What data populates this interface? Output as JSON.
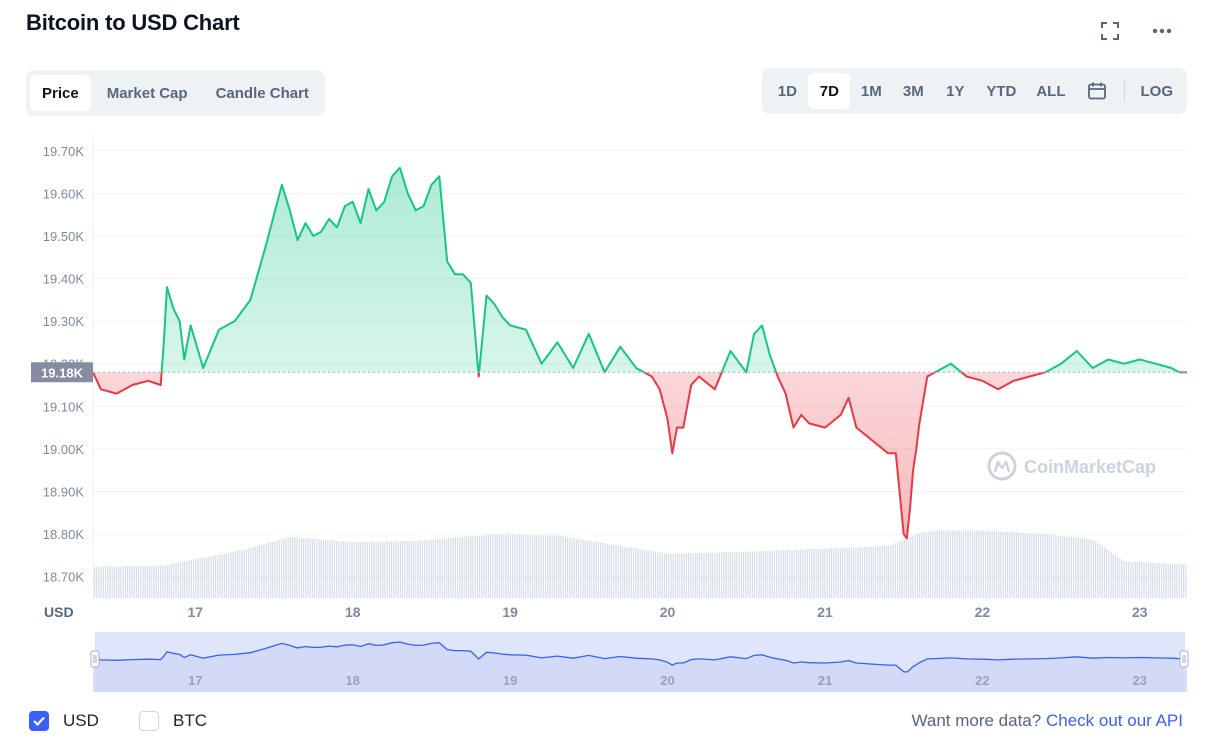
{
  "header": {
    "title": "Bitcoin to USD Chart"
  },
  "tabs": [
    {
      "label": "Price",
      "active": true
    },
    {
      "label": "Market Cap",
      "active": false
    },
    {
      "label": "Candle Chart",
      "active": false
    }
  ],
  "ranges": [
    {
      "label": "1D",
      "active": false
    },
    {
      "label": "7D",
      "active": true
    },
    {
      "label": "1M",
      "active": false
    },
    {
      "label": "3M",
      "active": false
    },
    {
      "label": "1Y",
      "active": false
    },
    {
      "label": "YTD",
      "active": false
    },
    {
      "label": "ALL",
      "active": false
    }
  ],
  "log_label": "LOG",
  "currency_label": "USD",
  "watermark": "CoinMarketCap",
  "footer": {
    "usd_label": "USD",
    "usd_checked": true,
    "btc_label": "BTC",
    "btc_checked": false,
    "api_prompt": "Want more data?",
    "api_link": "Check out our API"
  },
  "colors": {
    "up": "#16c784",
    "down": "#ea3943",
    "accent": "#3861fb",
    "volume": "#cfd6e4",
    "navigator_fill": "#dfe5fb"
  },
  "chart_data": {
    "type": "line",
    "title": "Bitcoin to USD Chart",
    "ylabel": "",
    "xlabel": "",
    "ylim": [
      18650,
      19730
    ],
    "y_ticks": [
      "19.70K",
      "19.60K",
      "19.50K",
      "19.40K",
      "19.30K",
      "19.20K",
      "19.10K",
      "19.00K",
      "18.90K",
      "18.80K",
      "18.70K"
    ],
    "y_tick_values": [
      19700,
      19600,
      19500,
      19400,
      19300,
      19200,
      19100,
      19000,
      18900,
      18800,
      18700
    ],
    "x_range": [
      16.35,
      23.3
    ],
    "x_ticks": [
      "17",
      "18",
      "19",
      "20",
      "21",
      "22",
      "23"
    ],
    "x_tick_values": [
      17,
      18,
      19,
      20,
      21,
      22,
      23
    ],
    "baseline_value": 19180,
    "baseline_label": "19.18K",
    "grid": true,
    "series": [
      {
        "x": [
          16.35,
          16.4,
          16.5,
          16.6,
          16.7,
          16.78,
          16.8,
          16.82,
          16.86,
          16.9,
          16.93,
          16.97,
          17.05,
          17.15,
          17.25,
          17.35,
          17.45,
          17.5,
          17.55,
          17.6,
          17.65,
          17.7,
          17.75,
          17.8,
          17.85,
          17.9,
          17.95,
          18.0,
          18.05,
          18.1,
          18.15,
          18.2,
          18.25,
          18.3,
          18.35,
          18.4,
          18.45,
          18.5,
          18.55,
          18.6,
          18.65,
          18.7,
          18.75,
          18.8,
          18.85,
          18.9,
          18.95,
          19.0,
          19.1,
          19.2,
          19.3,
          19.4,
          19.5,
          19.6,
          19.7,
          19.8,
          19.9,
          19.95,
          20.0,
          20.03,
          20.06,
          20.1,
          20.15,
          20.2,
          20.3,
          20.4,
          20.5,
          20.55,
          20.6,
          20.65,
          20.7,
          20.75,
          20.8,
          20.85,
          20.9,
          21.0,
          21.1,
          21.15,
          21.2,
          21.3,
          21.4,
          21.45,
          21.5,
          21.52,
          21.54,
          21.56,
          21.58,
          21.6,
          21.65,
          21.7,
          21.8,
          21.9,
          22.0,
          22.1,
          22.2,
          22.3,
          22.4,
          22.5,
          22.6,
          22.7,
          22.8,
          22.9,
          23.0,
          23.1,
          23.2,
          23.25,
          23.3
        ],
        "y": [
          19180,
          19140,
          19130,
          19150,
          19160,
          19150,
          19250,
          19380,
          19330,
          19300,
          19210,
          19290,
          19190,
          19280,
          19300,
          19350,
          19480,
          19550,
          19620,
          19560,
          19490,
          19530,
          19500,
          19510,
          19540,
          19520,
          19570,
          19580,
          19530,
          19610,
          19560,
          19580,
          19640,
          19660,
          19600,
          19560,
          19570,
          19620,
          19640,
          19440,
          19410,
          19410,
          19390,
          19170,
          19360,
          19340,
          19310,
          19290,
          19280,
          19200,
          19250,
          19190,
          19270,
          19180,
          19240,
          19190,
          19170,
          19140,
          19070,
          18990,
          19050,
          19050,
          19150,
          19170,
          19140,
          19230,
          19180,
          19270,
          19290,
          19220,
          19170,
          19130,
          19050,
          19080,
          19060,
          19050,
          19080,
          19120,
          19050,
          19020,
          18990,
          18990,
          18800,
          18790,
          18860,
          18950,
          19000,
          19060,
          19170,
          19180,
          19200,
          19170,
          19160,
          19140,
          19160,
          19170,
          19180,
          19200,
          19230,
          19190,
          19210,
          19200,
          19210,
          19200,
          19190,
          19180,
          19180
        ]
      }
    ],
    "volume": {
      "x": [
        16.35,
        16.8,
        17.0,
        17.3,
        17.6,
        18.0,
        18.4,
        18.9,
        19.3,
        19.7,
        20.0,
        20.3,
        20.6,
        21.0,
        21.4,
        21.6,
        21.7,
        22.0,
        22.4,
        22.7,
        22.9,
        23.3
      ],
      "values": [
        0.24,
        0.25,
        0.3,
        0.37,
        0.47,
        0.43,
        0.44,
        0.49,
        0.48,
        0.4,
        0.34,
        0.35,
        0.36,
        0.38,
        0.4,
        0.5,
        0.52,
        0.52,
        0.49,
        0.45,
        0.28,
        0.26
      ]
    }
  }
}
